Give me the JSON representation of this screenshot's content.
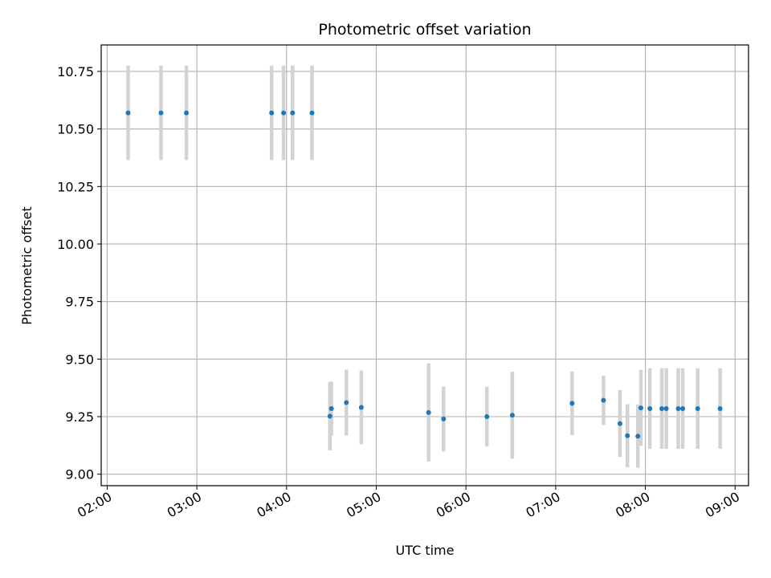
{
  "chart_data": {
    "type": "scatter",
    "title": "Photometric offset variation",
    "xlabel": "UTC time",
    "ylabel": "Photometric offset",
    "x_unit": "UTC time (HH:MM)",
    "xlim": [
      "01:56",
      "09:09"
    ],
    "ylim": [
      8.95,
      10.865
    ],
    "x_ticks": [
      "02:00",
      "03:00",
      "04:00",
      "05:00",
      "06:00",
      "07:00",
      "08:00",
      "09:00"
    ],
    "y_ticks": [
      9.0,
      9.25,
      9.5,
      9.75,
      10.0,
      10.25,
      10.5,
      10.75
    ],
    "y_tick_labels": [
      "9.00",
      "9.25",
      "9.50",
      "9.75",
      "10.00",
      "10.25",
      "10.50",
      "10.75"
    ],
    "grid": true,
    "point_color": "#1f77b4",
    "errorbar_color": "#d3d3d3",
    "points": [
      {
        "t": "02:14",
        "y": 10.57,
        "err": 0.205
      },
      {
        "t": "02:36",
        "y": 10.57,
        "err": 0.205
      },
      {
        "t": "02:53",
        "y": 10.57,
        "err": 0.205
      },
      {
        "t": "03:50",
        "y": 10.57,
        "err": 0.205
      },
      {
        "t": "03:58",
        "y": 10.57,
        "err": 0.205
      },
      {
        "t": "04:04",
        "y": 10.57,
        "err": 0.205
      },
      {
        "t": "04:17",
        "y": 10.57,
        "err": 0.205
      },
      {
        "t": "04:29",
        "y": 9.252,
        "err": 0.148
      },
      {
        "t": "04:30",
        "y": 9.285,
        "err": 0.117
      },
      {
        "t": "04:40",
        "y": 9.311,
        "err": 0.143
      },
      {
        "t": "04:50",
        "y": 9.29,
        "err": 0.16
      },
      {
        "t": "05:35",
        "y": 9.268,
        "err": 0.213
      },
      {
        "t": "05:45",
        "y": 9.24,
        "err": 0.141
      },
      {
        "t": "06:14",
        "y": 9.25,
        "err": 0.13
      },
      {
        "t": "06:31",
        "y": 9.256,
        "err": 0.189
      },
      {
        "t": "07:11",
        "y": 9.308,
        "err": 0.138
      },
      {
        "t": "07:32",
        "y": 9.321,
        "err": 0.107
      },
      {
        "t": "07:43",
        "y": 9.22,
        "err": 0.145
      },
      {
        "t": "07:48",
        "y": 9.167,
        "err": 0.137
      },
      {
        "t": "07:55",
        "y": 9.165,
        "err": 0.137
      },
      {
        "t": "07:57",
        "y": 9.288,
        "err": 0.165
      },
      {
        "t": "08:03",
        "y": 9.285,
        "err": 0.175
      },
      {
        "t": "08:11",
        "y": 9.285,
        "err": 0.175
      },
      {
        "t": "08:14",
        "y": 9.285,
        "err": 0.175
      },
      {
        "t": "08:22",
        "y": 9.285,
        "err": 0.175
      },
      {
        "t": "08:25",
        "y": 9.285,
        "err": 0.175
      },
      {
        "t": "08:35",
        "y": 9.285,
        "err": 0.175
      },
      {
        "t": "08:50",
        "y": 9.285,
        "err": 0.175
      }
    ]
  }
}
